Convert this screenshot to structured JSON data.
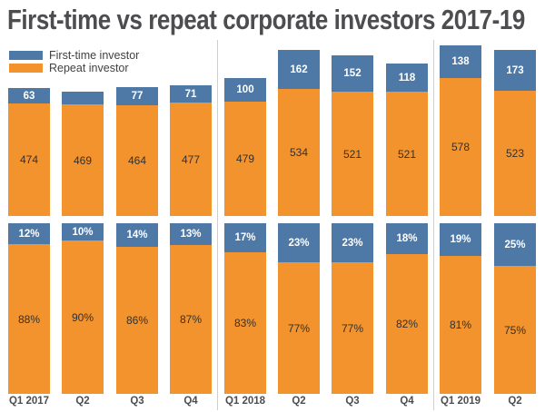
{
  "title": "First-time vs repeat corporate investors 2017-19",
  "legend": [
    {
      "label": "First-time investor",
      "color": "#4e79a7"
    },
    {
      "label": "Repeat investor",
      "color": "#f2932e"
    }
  ],
  "colors": {
    "first_time_blue": "#4e79a7",
    "repeat_orange": "#f2932e",
    "divider_gray": "#cfcfcf",
    "title_text": "#4d4d50",
    "axis_text": "#4d4d4f",
    "label_on_orange": "#33302c",
    "label_on_blue": "#ffffff"
  },
  "chart_data": [
    {
      "type": "bar",
      "subtype": "stacked-counts",
      "title": "",
      "categories": [
        "Q1 2017",
        "Q2",
        "Q3",
        "Q4",
        "Q1 2018",
        "Q2",
        "Q3",
        "Q4",
        "Q1 2019",
        "Q2"
      ],
      "series": [
        {
          "name": "First-time investor",
          "values": [
            63,
            52,
            77,
            71,
            100,
            162,
            152,
            118,
            138,
            173
          ],
          "labels": [
            "63",
            "",
            "77",
            "71",
            "100",
            "162",
            "152",
            "118",
            "138",
            "173"
          ]
        },
        {
          "name": "Repeat investor",
          "values": [
            474,
            469,
            464,
            477,
            479,
            534,
            521,
            521,
            578,
            523
          ],
          "labels": [
            "474",
            "469",
            "464",
            "477",
            "479",
            "534",
            "521",
            "521",
            "578",
            "523"
          ]
        }
      ],
      "ylim": [
        0,
        716
      ],
      "grid": false,
      "axis_lines": false,
      "legend_position": "top-left"
    },
    {
      "type": "bar",
      "subtype": "stacked-percent",
      "title": "",
      "categories": [
        "Q1 2017",
        "Q2",
        "Q3",
        "Q4",
        "Q1 2018",
        "Q2",
        "Q3",
        "Q4",
        "Q1 2019",
        "Q2"
      ],
      "series": [
        {
          "name": "First-time investor",
          "values": [
            12,
            10,
            14,
            13,
            17,
            23,
            23,
            18,
            19,
            25
          ],
          "labels": [
            "12%",
            "10%",
            "14%",
            "13%",
            "17%",
            "23%",
            "23%",
            "18%",
            "19%",
            "25%"
          ]
        },
        {
          "name": "Repeat investor",
          "values": [
            88,
            90,
            86,
            87,
            83,
            77,
            77,
            82,
            81,
            75
          ],
          "labels": [
            "88%",
            "90%",
            "86%",
            "87%",
            "83%",
            "77%",
            "77%",
            "82%",
            "81%",
            "75%"
          ]
        }
      ],
      "ylim": [
        0,
        100
      ],
      "grid": false,
      "axis_lines": false
    }
  ],
  "year_dividers": [
    "between Q4 2017 and Q1 2018",
    "between Q4 2018 and Q1 2019"
  ]
}
